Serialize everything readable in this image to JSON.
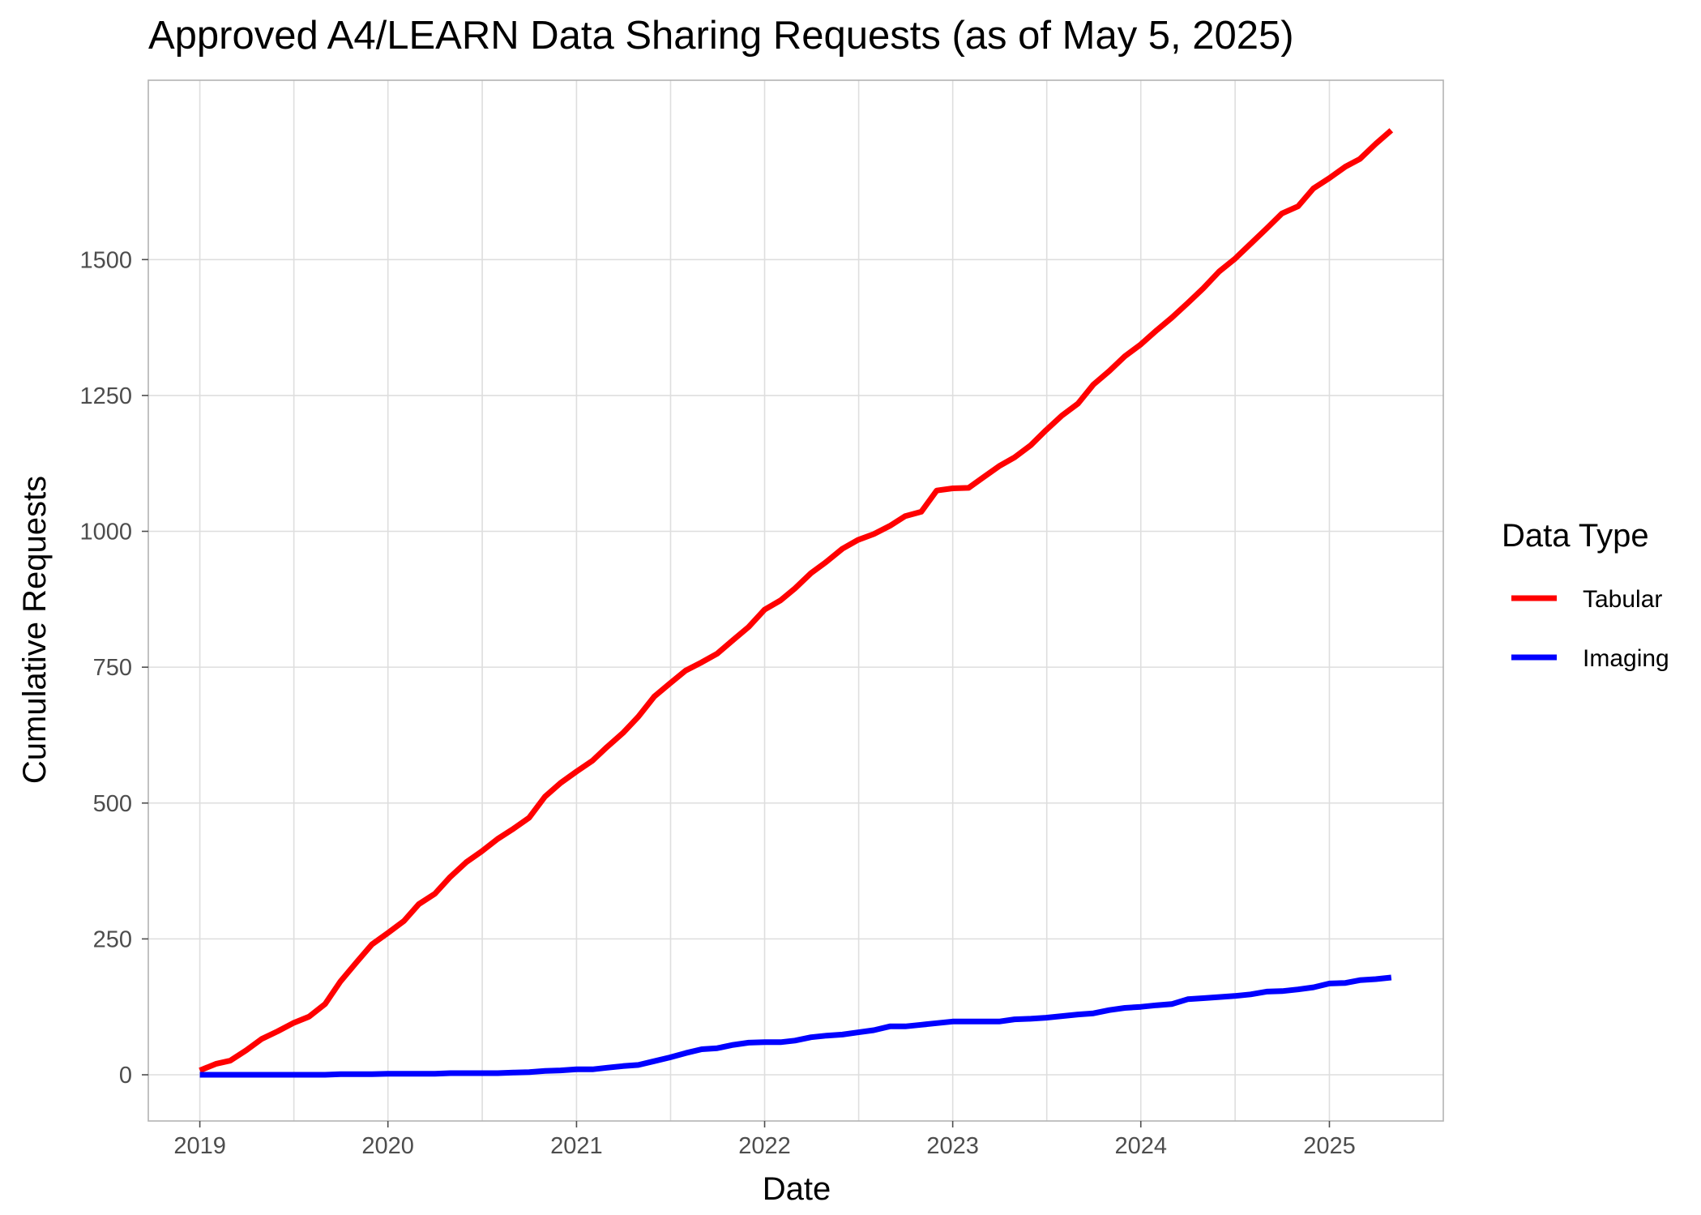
{
  "chart_data": {
    "type": "line",
    "title": "Approved A4/LEARN Data Sharing Requests (as of May 5, 2025)",
    "xlabel": "Date",
    "ylabel": "Cumulative Requests",
    "xlim": [
      "2018-09-23",
      "2025-08-10"
    ],
    "ylim": [
      -85,
      1830
    ],
    "x_ticks": [
      {
        "label": "2019",
        "date": "2019-01-01"
      },
      {
        "label": "2020",
        "date": "2020-01-01"
      },
      {
        "label": "2021",
        "date": "2021-01-01"
      },
      {
        "label": "2022",
        "date": "2022-01-01"
      },
      {
        "label": "2023",
        "date": "2023-01-01"
      },
      {
        "label": "2024",
        "date": "2024-01-01"
      },
      {
        "label": "2025",
        "date": "2025-01-01"
      }
    ],
    "y_ticks": [
      0,
      250,
      500,
      750,
      1000,
      1250,
      1500
    ],
    "legend": {
      "title": "Data Type",
      "position": "right"
    },
    "grid": true,
    "x": [
      "2019-01-01",
      "2019-02-01",
      "2019-03-01",
      "2019-04-01",
      "2019-05-01",
      "2019-06-01",
      "2019-07-01",
      "2019-08-01",
      "2019-09-01",
      "2019-10-01",
      "2019-11-01",
      "2019-12-01",
      "2020-01-01",
      "2020-02-01",
      "2020-03-01",
      "2020-04-01",
      "2020-05-01",
      "2020-06-01",
      "2020-07-01",
      "2020-08-01",
      "2020-09-01",
      "2020-10-01",
      "2020-11-01",
      "2020-12-01",
      "2021-01-01",
      "2021-02-01",
      "2021-03-01",
      "2021-04-01",
      "2021-05-01",
      "2021-06-01",
      "2021-07-01",
      "2021-08-01",
      "2021-09-01",
      "2021-10-01",
      "2021-11-01",
      "2021-12-01",
      "2022-01-01",
      "2022-02-01",
      "2022-03-01",
      "2022-04-01",
      "2022-05-01",
      "2022-06-01",
      "2022-07-01",
      "2022-08-01",
      "2022-09-01",
      "2022-10-01",
      "2022-11-01",
      "2022-12-01",
      "2023-01-01",
      "2023-02-01",
      "2023-03-01",
      "2023-04-01",
      "2023-05-01",
      "2023-06-01",
      "2023-07-01",
      "2023-08-01",
      "2023-09-01",
      "2023-10-01",
      "2023-11-01",
      "2023-12-01",
      "2024-01-01",
      "2024-02-01",
      "2024-03-01",
      "2024-04-01",
      "2024-05-01",
      "2024-06-01",
      "2024-07-01",
      "2024-08-01",
      "2024-09-01",
      "2024-10-01",
      "2024-11-01",
      "2024-12-01",
      "2025-01-01",
      "2025-02-01",
      "2025-03-01",
      "2025-04-01",
      "2025-05-01"
    ],
    "series": [
      {
        "name": "Tabular",
        "color": "#ff0000",
        "values": [
          8,
          20,
          26,
          45,
          66,
          80,
          95,
          107,
          130,
          172,
          207,
          240,
          261,
          283,
          314,
          333,
          364,
          391,
          411,
          434,
          453,
          473,
          512,
          537,
          558,
          578,
          603,
          629,
          659,
          696,
          720,
          744,
          759,
          775,
          800,
          824,
          856,
          873,
          895,
          923,
          944,
          968,
          984,
          995,
          1010,
          1028,
          1036,
          1075,
          1079,
          1080,
          1099,
          1120,
          1136,
          1158,
          1186,
          1213,
          1235,
          1270,
          1295,
          1322,
          1344,
          1370,
          1393,
          1420,
          1447,
          1478,
          1501,
          1529,
          1557,
          1585,
          1598,
          1631,
          1650,
          1671,
          1685,
          1713,
          1738
        ]
      },
      {
        "name": "Imaging",
        "color": "#0000ff",
        "values": [
          0,
          0,
          0,
          0,
          0,
          0,
          0,
          0,
          0,
          1,
          1,
          1,
          2,
          2,
          2,
          2,
          3,
          3,
          3,
          3,
          4,
          5,
          7,
          8,
          10,
          10,
          13,
          16,
          18,
          25,
          32,
          40,
          47,
          49,
          55,
          59,
          60,
          60,
          63,
          69,
          72,
          74,
          78,
          82,
          89,
          89,
          92,
          95,
          98,
          98,
          98,
          98,
          102,
          103,
          105,
          108,
          111,
          113,
          119,
          123,
          125,
          128,
          130,
          139,
          141,
          143,
          145,
          148,
          153,
          154,
          157,
          161,
          168,
          169,
          174,
          176,
          179
        ]
      }
    ]
  }
}
